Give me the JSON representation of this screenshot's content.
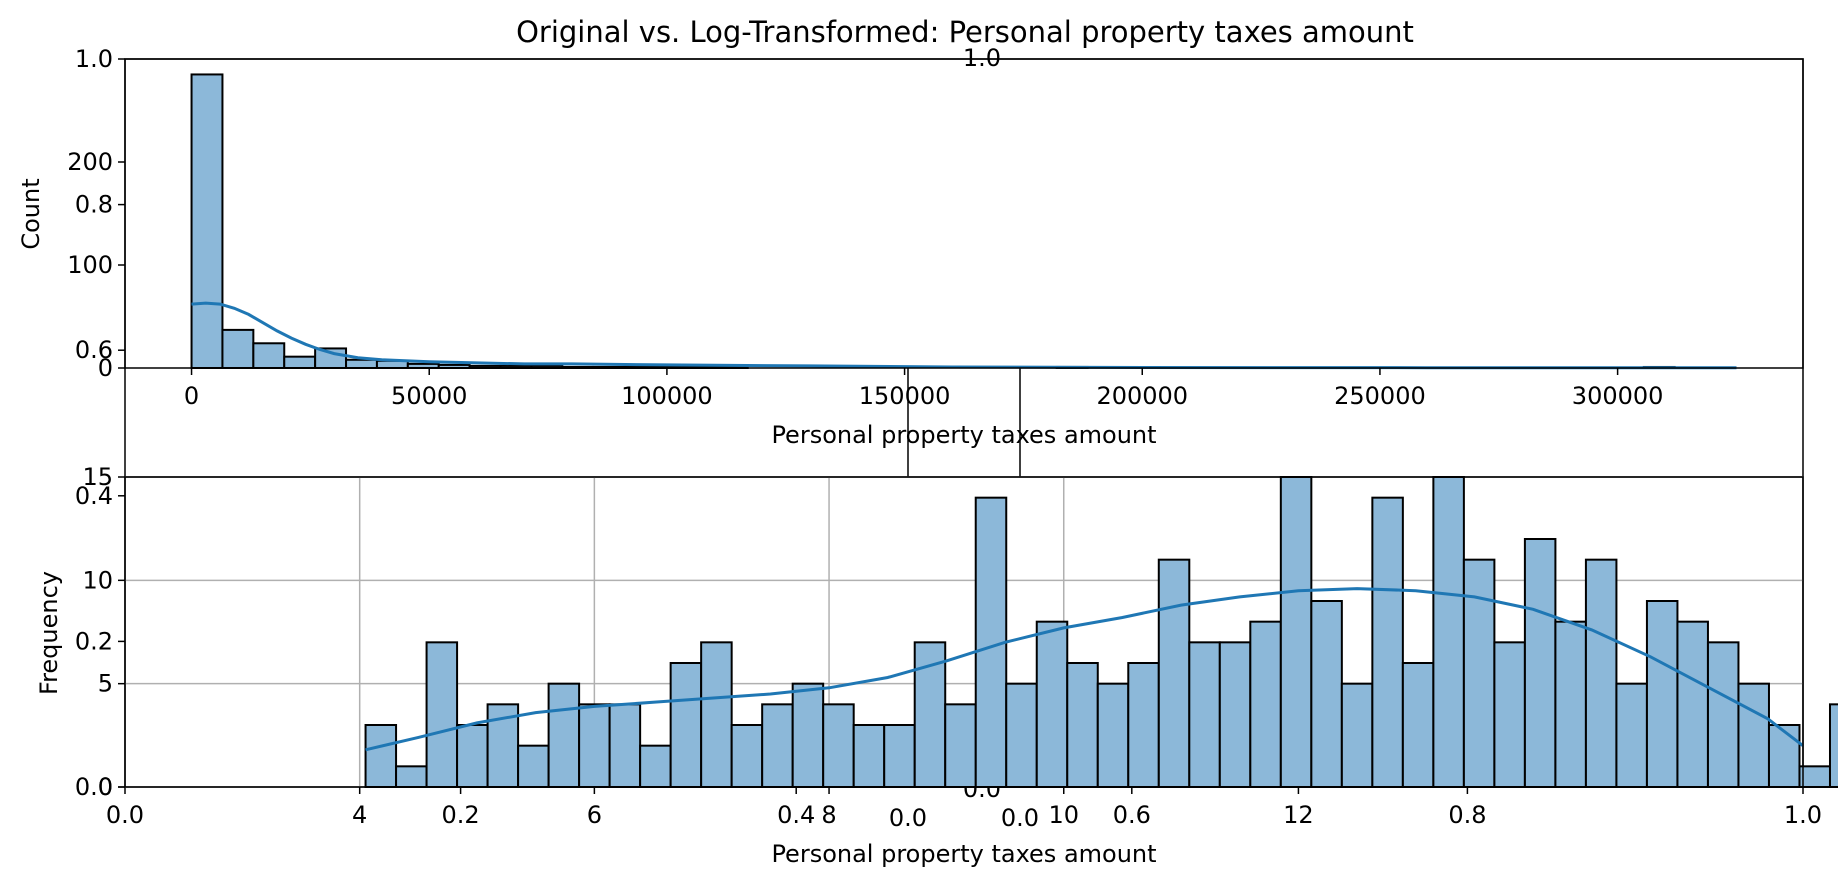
{
  "figure": {
    "title": "Original vs. Log-Transformed: Personal property taxes amount",
    "colors": {
      "bar_fill": "#8cb8d9",
      "bar_edge": "#000000",
      "kde": "#1f77b4",
      "grid": "#b0b0b0"
    }
  },
  "overlay_ticks": {
    "left_top": [
      "1.0",
      "0.8",
      "0.6"
    ],
    "left_bottom": [
      "0.4",
      "0.2",
      "0.0"
    ],
    "bottom": [
      "0.0",
      "0.2",
      "0.4",
      "0.6",
      "0.8",
      "1.0"
    ],
    "center_left": "1.0",
    "center_bottom": "0.0",
    "center_right_axis": "0.0"
  },
  "chart_data": [
    {
      "type": "bar",
      "title": "",
      "xlabel": "Personal property taxes amount",
      "ylabel": "Count",
      "xlim": [
        -14000,
        339000
      ],
      "ylim": [
        0,
        300
      ],
      "xticks": [
        0,
        50000,
        100000,
        150000,
        200000,
        250000,
        300000
      ],
      "xtick_labels": [
        "0",
        "50000",
        "100000",
        "150000",
        "200000",
        "250000",
        "300000"
      ],
      "yticks": [
        0,
        100,
        200
      ],
      "ytick_labels": [
        "0",
        "100",
        "200"
      ],
      "grid": false,
      "bin_start": 0,
      "bin_width": 6500,
      "counts": [
        285,
        37,
        24,
        11,
        19,
        8,
        7,
        4,
        3,
        2,
        2,
        2,
        1,
        1,
        1,
        1,
        1,
        1,
        0,
        0,
        0,
        0,
        0,
        0,
        0,
        0,
        0,
        0,
        1,
        0,
        0,
        0,
        0,
        0,
        0,
        0,
        0,
        0,
        0,
        0,
        0,
        0,
        0,
        0,
        0,
        0,
        0,
        1,
        0,
        0
      ],
      "kde": {
        "x": [
          0,
          3000,
          6000,
          9000,
          12000,
          15000,
          18000,
          21000,
          24000,
          27000,
          30000,
          35000,
          40000,
          45000,
          50000,
          60000,
          70000,
          80000,
          100000,
          130000,
          160000,
          200000,
          260000,
          325000
        ],
        "y": [
          62,
          63,
          62,
          58,
          52,
          44,
          36,
          29,
          23,
          18,
          14,
          10,
          8,
          7,
          6,
          5,
          4,
          4,
          3,
          2,
          1,
          0.5,
          0.3,
          0.2
        ]
      }
    },
    {
      "type": "bar",
      "title": "",
      "xlabel": "Personal property taxes amount",
      "ylabel": "Frequency",
      "xlim": [
        2.0,
        16.3
      ],
      "ylim": [
        0,
        15
      ],
      "xticks": [
        4,
        6,
        8,
        10,
        12
      ],
      "xtick_labels": [
        "4",
        "6",
        "8",
        "10",
        "12"
      ],
      "yticks": [
        0,
        5,
        10,
        15
      ],
      "ytick_labels": [
        "0",
        "5",
        "10",
        "15"
      ],
      "grid": true,
      "bin_start": 4.05,
      "bin_width": 0.26,
      "counts": [
        3,
        1,
        7,
        3,
        4,
        2,
        5,
        4,
        4,
        2,
        6,
        7,
        3,
        4,
        5,
        4,
        3,
        3,
        7,
        4,
        14,
        5,
        8,
        6,
        5,
        6,
        11,
        7,
        7,
        8,
        15,
        9,
        5,
        14,
        6,
        15,
        11,
        7,
        12,
        8,
        11,
        5,
        9,
        8,
        7,
        5,
        3,
        1,
        4
      ],
      "kde": {
        "x": [
          4.05,
          4.5,
          5.0,
          5.5,
          6.0,
          6.5,
          7.0,
          7.5,
          8.0,
          8.5,
          9.0,
          9.5,
          10.0,
          10.5,
          11.0,
          11.5,
          12.0,
          12.5,
          13.0,
          13.5,
          14.0,
          14.5,
          15.0,
          15.5,
          16.0,
          16.3
        ],
        "y": [
          1.8,
          2.4,
          3.1,
          3.6,
          3.9,
          4.1,
          4.3,
          4.5,
          4.8,
          5.3,
          6.1,
          7.0,
          7.7,
          8.2,
          8.8,
          9.2,
          9.5,
          9.6,
          9.5,
          9.2,
          8.6,
          7.6,
          6.3,
          4.8,
          3.3,
          2.0
        ]
      }
    }
  ]
}
